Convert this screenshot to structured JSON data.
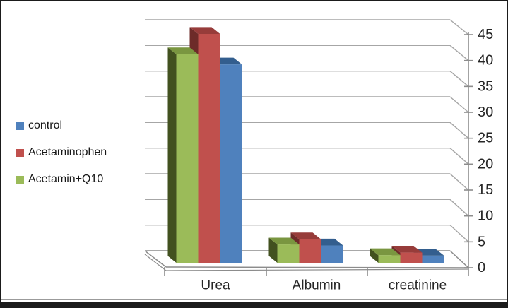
{
  "frame": {
    "background": "#ffffff",
    "border_color": "#1b1b1b",
    "inner_line_color": "#9b9b9b"
  },
  "legend": {
    "position": "left-middle",
    "items": [
      {
        "label": "control",
        "color": "#4F81BD"
      },
      {
        "label": "Acetaminophen",
        "color": "#C0504D"
      },
      {
        "label": "Acetamin+Q10",
        "color": "#9BBB59"
      }
    ]
  },
  "chart_data": {
    "type": "bar",
    "style": "3d-clustered-column",
    "title": "",
    "xlabel": "",
    "ylabel": "",
    "categories": [
      "Urea",
      "Albumin",
      "creatinine"
    ],
    "series": [
      {
        "name": "control",
        "values": [
          39,
          3.4,
          1.4
        ],
        "color_front": "#4F81BD",
        "color_top": "#335E8E",
        "color_side": "#27486D"
      },
      {
        "name": "Acetaminophen",
        "values": [
          45,
          4.6,
          2.0
        ],
        "color_front": "#C0504D",
        "color_top": "#973C3A",
        "color_side": "#6D2B29"
      },
      {
        "name": "Acetamin+Q10",
        "values": [
          41,
          3.6,
          1.5
        ],
        "color_front": "#9BBB59",
        "color_top": "#7A9640",
        "color_side": "#42511F"
      }
    ],
    "bar_display_order_left_to_right": [
      "Acetamin+Q10",
      "Acetaminophen",
      "control"
    ],
    "value_axis": {
      "position": "right",
      "min": 0,
      "max": 45,
      "step": 5,
      "ticks": [
        "0",
        "5",
        "10",
        "15",
        "20",
        "25",
        "30",
        "35",
        "40",
        "45"
      ]
    },
    "gridlines": true,
    "grid_color": "#A6A6A6",
    "axis_color": "#8C8C8C",
    "text_color": "#262626",
    "legend_position": "left"
  }
}
